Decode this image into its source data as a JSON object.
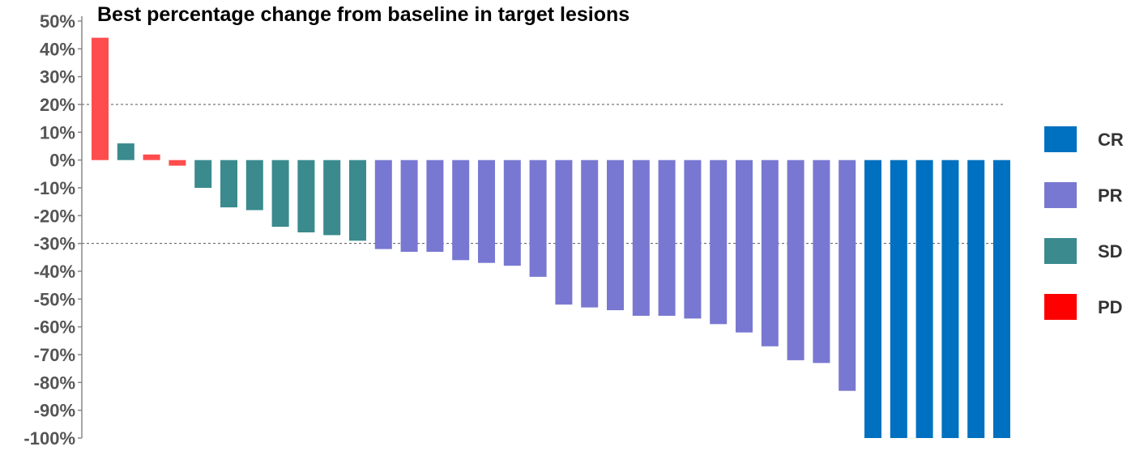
{
  "chart_data": {
    "type": "bar",
    "title": "Best percentage change from baseline in target lesions",
    "xlabel": "",
    "ylabel": "",
    "ylim": [
      -100,
      50
    ],
    "yticks": [
      50,
      40,
      30,
      20,
      10,
      0,
      -10,
      -20,
      -30,
      -40,
      -50,
      -60,
      -70,
      -80,
      -90,
      -100
    ],
    "ytick_suffix": "%",
    "reference_lines": [
      20,
      -30
    ],
    "grid": false,
    "legend_position": "right",
    "categories_legend": [
      {
        "label": "CR",
        "color": "#0070c0"
      },
      {
        "label": "PR",
        "color": "#7878d2"
      },
      {
        "label": "SD",
        "color": "#3a8a8e"
      },
      {
        "label": "PD",
        "color": "#ff0000"
      }
    ],
    "colors": {
      "PD": "#ff4d4d",
      "SD": "#3a8a8e",
      "PR": "#7878d2",
      "CR": "#0070c0"
    },
    "bars": [
      {
        "value": 44,
        "response": "PD"
      },
      {
        "value": 6,
        "response": "SD"
      },
      {
        "value": 2,
        "response": "PD"
      },
      {
        "value": -2,
        "response": "PD"
      },
      {
        "value": -10,
        "response": "SD"
      },
      {
        "value": -17,
        "response": "SD"
      },
      {
        "value": -18,
        "response": "SD"
      },
      {
        "value": -24,
        "response": "SD"
      },
      {
        "value": -26,
        "response": "SD"
      },
      {
        "value": -27,
        "response": "SD"
      },
      {
        "value": -29,
        "response": "SD"
      },
      {
        "value": -32,
        "response": "PR"
      },
      {
        "value": -33,
        "response": "PR"
      },
      {
        "value": -33,
        "response": "PR"
      },
      {
        "value": -36,
        "response": "PR"
      },
      {
        "value": -37,
        "response": "PR"
      },
      {
        "value": -38,
        "response": "PR"
      },
      {
        "value": -42,
        "response": "PR"
      },
      {
        "value": -52,
        "response": "PR"
      },
      {
        "value": -53,
        "response": "PR"
      },
      {
        "value": -54,
        "response": "PR"
      },
      {
        "value": -56,
        "response": "PR"
      },
      {
        "value": -56,
        "response": "PR"
      },
      {
        "value": -57,
        "response": "PR"
      },
      {
        "value": -59,
        "response": "PR"
      },
      {
        "value": -62,
        "response": "PR"
      },
      {
        "value": -67,
        "response": "PR"
      },
      {
        "value": -72,
        "response": "PR"
      },
      {
        "value": -73,
        "response": "PR"
      },
      {
        "value": -83,
        "response": "PR"
      },
      {
        "value": -100,
        "response": "CR"
      },
      {
        "value": -100,
        "response": "CR"
      },
      {
        "value": -100,
        "response": "CR"
      },
      {
        "value": -100,
        "response": "CR"
      },
      {
        "value": -100,
        "response": "CR"
      },
      {
        "value": -100,
        "response": "CR"
      }
    ]
  }
}
